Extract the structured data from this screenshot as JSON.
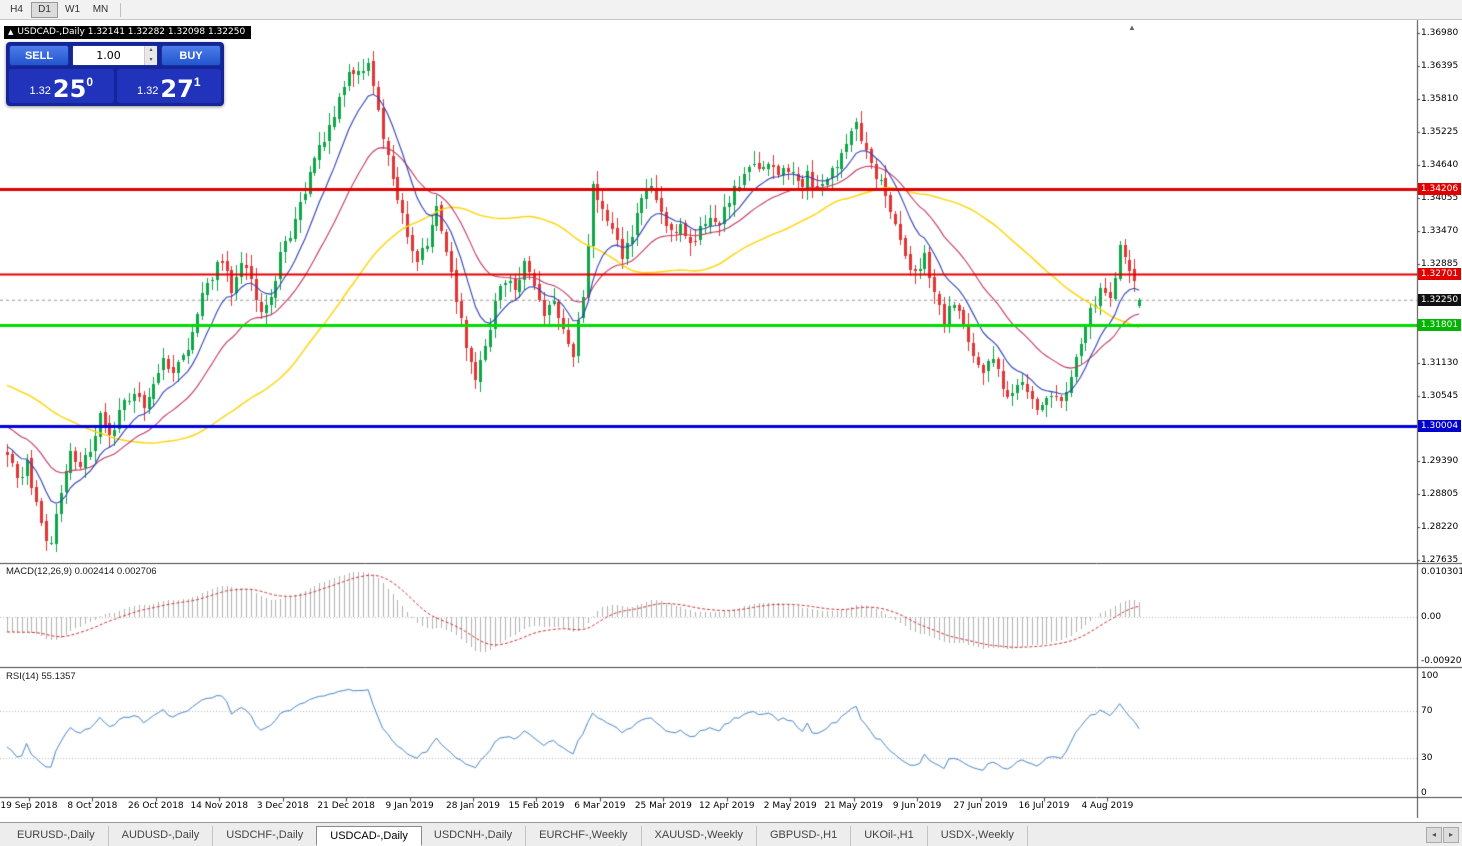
{
  "colors": {
    "bull": "#10a54a",
    "bear": "#e23535",
    "ma_fast": "#3143b5",
    "ma_medium": "#c13a66",
    "ma_slow": "#ffd400",
    "macd_hist": "#b2b2b2",
    "macd_signal": "#cc3333",
    "rsi_line": "#4a87c7",
    "axis_line": "#444444"
  },
  "toolbar": {
    "timeframe_buttons": [
      "H4",
      "D1",
      "W1",
      "MN"
    ],
    "active": "D1"
  },
  "chart_header": {
    "collapse_icon": "▲",
    "title": "USDCAD-,Daily 1.32141 1.32282 1.32098 1.32250"
  },
  "trade_panel": {
    "sell_label": "SELL",
    "buy_label": "BUY",
    "volume_value": "1.00",
    "spin_up": "▴",
    "spin_down": "▾",
    "sell_price": {
      "small": "1.32",
      "big": "25",
      "sup": "0"
    },
    "buy_price": {
      "small": "1.32",
      "big": "27",
      "sup": "1"
    }
  },
  "price_axis_labels": [
    "1.36980",
    "1.36395",
    "1.35810",
    "1.35225",
    "1.34640",
    "1.34055",
    "1.33470",
    "1.32885",
    "1.31130",
    "1.30545",
    "1.29390",
    "1.28805",
    "1.28220",
    "1.27635"
  ],
  "price_badges": [
    {
      "text": "1.34206",
      "color": "#e10000",
      "name": "resistance-line-badge-1"
    },
    {
      "text": "1.32701",
      "color": "#e10000",
      "name": "resistance-line-badge-2"
    },
    {
      "text": "1.32250",
      "color": "#111111",
      "name": "current-price-badge"
    },
    {
      "text": "1.31801",
      "color": "#00b400",
      "name": "support-line-badge"
    },
    {
      "text": "1.30004",
      "color": "#0000cc",
      "name": "psych-level-badge"
    }
  ],
  "indicators": {
    "macd": {
      "label": "MACD(12,26,9) 0.002414 0.002706",
      "axis_labels": [
        "0.010301",
        "0.00",
        "-0.009203"
      ],
      "fast": 12,
      "slow": 26,
      "signal": 9
    },
    "rsi": {
      "label": "RSI(14) 55.1357",
      "axis_labels": [
        "100",
        "70",
        "30",
        "0"
      ],
      "levels": [
        70,
        30
      ],
      "period": 14,
      "current": 55.1357
    }
  },
  "date_axis": {
    "labels": [
      "19 Sep 2018",
      "8 Oct 2018",
      "26 Oct 2018",
      "14 Nov 2018",
      "3 Dec 2018",
      "21 Dec 2018",
      "9 Jan 2019",
      "28 Jan 2019",
      "15 Feb 2019",
      "6 Mar 2019",
      "25 Mar 2019",
      "12 Apr 2019",
      "2 May 2019",
      "21 May 2019",
      "9 Jun 2019",
      "27 Jun 2019",
      "16 Jul 2019",
      "4 Aug 2019"
    ],
    "first_bar": 4.5,
    "bar_step": 13
  },
  "tabbar": {
    "tabs": [
      "EURUSD-,Daily",
      "AUDUSD-,Daily",
      "USDCHF-,Daily",
      "USDCAD-,Daily",
      "USDCNH-,Daily",
      "EURCHF-,Weekly",
      "XAUUSD-,Weekly",
      "GBPUSD-,H1",
      "UKOil-,H1",
      "USDX-,Weekly"
    ],
    "active_index": 3,
    "scroll_left": "◂",
    "scroll_right": "▸"
  },
  "chart_data": {
    "type": "candlestick",
    "symbol": "USDCAD",
    "timeframe": "Daily",
    "current_bar": {
      "open": 1.32141,
      "high": 1.32282,
      "low": 1.32098,
      "close": 1.3225
    },
    "bars_count": 233,
    "price_range": [
      1.27635,
      1.3698
    ],
    "grid_step": 0.00585,
    "horizontal_lines": [
      {
        "price": 1.34206,
        "color": "#e10000",
        "width": 3
      },
      {
        "price": 1.32701,
        "color": "#e10000",
        "width": 2
      },
      {
        "price": 1.31801,
        "color": "#00dd00",
        "width": 3
      },
      {
        "price": 1.30004,
        "color": "#0000e0",
        "width": 3
      }
    ],
    "current_price_line": 1.3225,
    "moving_averages": [
      {
        "name": "fast",
        "type": "ema",
        "period": 10,
        "color": "#3143b5",
        "width": 1.1
      },
      {
        "name": "medium",
        "type": "ema",
        "period": 24,
        "color": "#c13a66",
        "width": 1.1
      },
      {
        "name": "slow",
        "type": "sma",
        "period": 52,
        "color": "#ffd400",
        "width": 1.4
      }
    ],
    "pre_window_anchors": [
      [
        -60,
        1.309
      ],
      [
        -45,
        1.314
      ],
      [
        -30,
        1.316
      ],
      [
        -20,
        1.305
      ],
      [
        -10,
        1.298
      ]
    ],
    "price_path_anchors": [
      [
        0,
        1.295
      ],
      [
        2,
        1.2905
      ],
      [
        4,
        1.293
      ],
      [
        7,
        1.282
      ],
      [
        9,
        1.279
      ],
      [
        11,
        1.288
      ],
      [
        13,
        1.2955
      ],
      [
        15,
        1.2935
      ],
      [
        17,
        1.2965
      ],
      [
        19,
        1.3015
      ],
      [
        21,
        1.2985
      ],
      [
        24,
        1.304
      ],
      [
        26,
        1.3065
      ],
      [
        28,
        1.304
      ],
      [
        30,
        1.3085
      ],
      [
        32,
        1.3115
      ],
      [
        34,
        1.309
      ],
      [
        36,
        1.313
      ],
      [
        38,
        1.316
      ],
      [
        40,
        1.323
      ],
      [
        42,
        1.327
      ],
      [
        44,
        1.3295
      ],
      [
        46,
        1.3235
      ],
      [
        48,
        1.329
      ],
      [
        50,
        1.3255
      ],
      [
        52,
        1.3195
      ],
      [
        54,
        1.3235
      ],
      [
        56,
        1.33
      ],
      [
        58,
        1.3345
      ],
      [
        60,
        1.34
      ],
      [
        62,
        1.3445
      ],
      [
        64,
        1.349
      ],
      [
        66,
        1.353
      ],
      [
        68,
        1.3585
      ],
      [
        70,
        1.362
      ],
      [
        72,
        1.364
      ],
      [
        74,
        1.3635
      ],
      [
        76,
        1.356
      ],
      [
        78,
        1.347
      ],
      [
        80,
        1.3395
      ],
      [
        82,
        1.334
      ],
      [
        84,
        1.33
      ],
      [
        86,
        1.333
      ],
      [
        88,
        1.339
      ],
      [
        90,
        1.332
      ],
      [
        92,
        1.323
      ],
      [
        94,
        1.315
      ],
      [
        96,
        1.3085
      ],
      [
        98,
        1.314
      ],
      [
        100,
        1.3215
      ],
      [
        102,
        1.3265
      ],
      [
        104,
        1.325
      ],
      [
        106,
        1.329
      ],
      [
        108,
        1.3245
      ],
      [
        110,
        1.3195
      ],
      [
        112,
        1.3225
      ],
      [
        114,
        1.3175
      ],
      [
        116,
        1.3135
      ],
      [
        118,
        1.324
      ],
      [
        120,
        1.342
      ],
      [
        122,
        1.339
      ],
      [
        124,
        1.334
      ],
      [
        126,
        1.3305
      ],
      [
        128,
        1.3345
      ],
      [
        130,
        1.3395
      ],
      [
        132,
        1.343
      ],
      [
        134,
        1.3385
      ],
      [
        136,
        1.334
      ],
      [
        138,
        1.3355
      ],
      [
        140,
        1.333
      ],
      [
        142,
        1.3345
      ],
      [
        144,
        1.3375
      ],
      [
        146,
        1.336
      ],
      [
        148,
        1.34
      ],
      [
        150,
        1.3435
      ],
      [
        152,
        1.3465
      ],
      [
        154,
        1.345
      ],
      [
        156,
        1.3465
      ],
      [
        158,
        1.344
      ],
      [
        160,
        1.346
      ],
      [
        162,
        1.3425
      ],
      [
        164,
        1.3445
      ],
      [
        166,
        1.3415
      ],
      [
        168,
        1.3435
      ],
      [
        170,
        1.3465
      ],
      [
        172,
        1.351
      ],
      [
        174,
        1.354
      ],
      [
        176,
        1.3495
      ],
      [
        178,
        1.345
      ],
      [
        180,
        1.3415
      ],
      [
        182,
        1.3355
      ],
      [
        184,
        1.3295
      ],
      [
        186,
        1.327
      ],
      [
        188,
        1.33
      ],
      [
        190,
        1.3245
      ],
      [
        192,
        1.318
      ],
      [
        194,
        1.3225
      ],
      [
        196,
        1.317
      ],
      [
        198,
        1.313
      ],
      [
        200,
        1.3095
      ],
      [
        202,
        1.3115
      ],
      [
        204,
        1.307
      ],
      [
        206,
        1.305
      ],
      [
        208,
        1.308
      ],
      [
        210,
        1.305
      ],
      [
        212,
        1.3032
      ],
      [
        214,
        1.306
      ],
      [
        216,
        1.3042
      ],
      [
        218,
        1.3085
      ],
      [
        220,
        1.3145
      ],
      [
        222,
        1.32
      ],
      [
        224,
        1.324
      ],
      [
        226,
        1.3225
      ],
      [
        227,
        1.326
      ],
      [
        228,
        1.333
      ],
      [
        230,
        1.3285
      ],
      [
        232,
        1.3225
      ]
    ]
  }
}
